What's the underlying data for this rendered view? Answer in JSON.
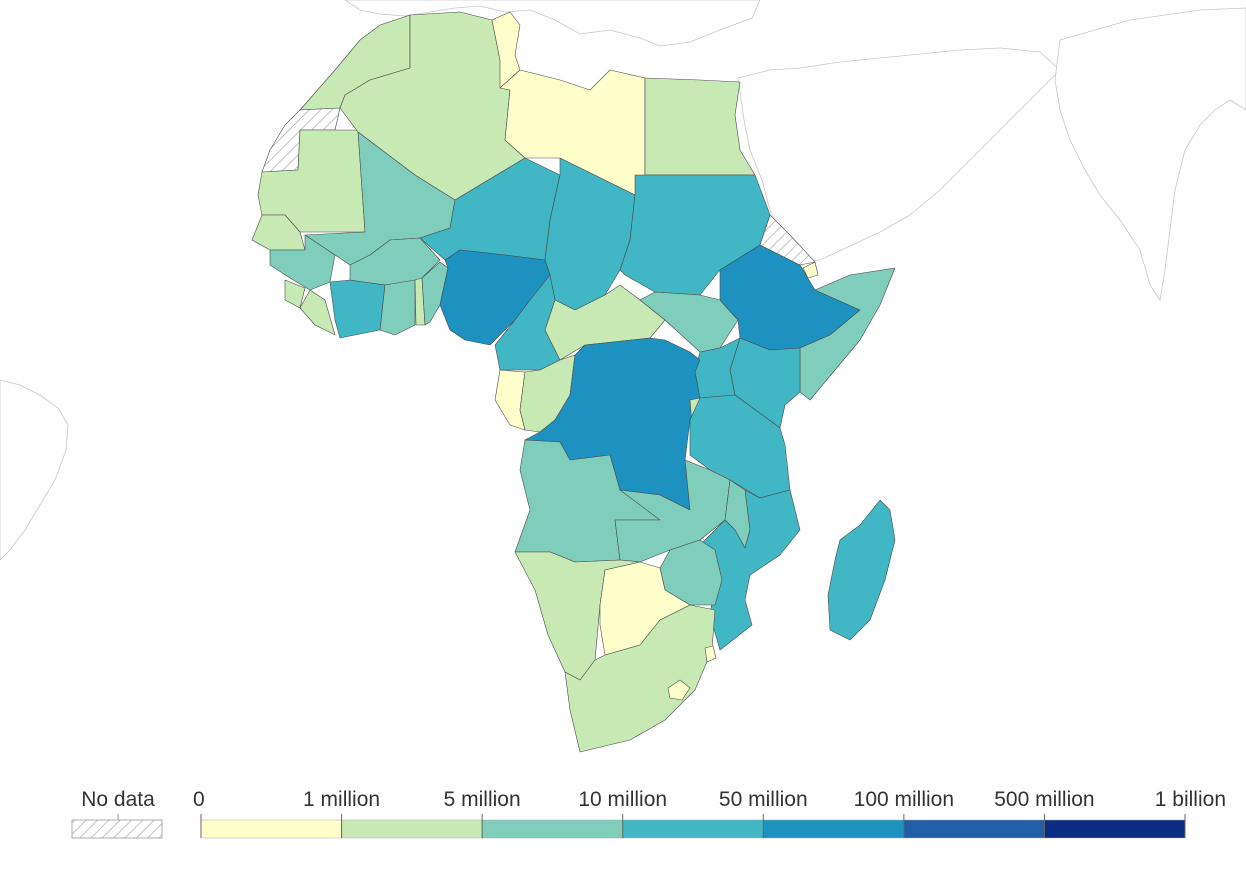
{
  "legend": {
    "no_data_label": "No data",
    "no_data_pattern": "hatched",
    "bins": [
      {
        "label": "0",
        "color": "#ffffcc"
      },
      {
        "label": "1 million",
        "color": "#c7e9b4"
      },
      {
        "label": "5 million",
        "color": "#7fcdbb"
      },
      {
        "label": "10 million",
        "color": "#41b6c4"
      },
      {
        "label": "50 million",
        "color": "#1d91c0"
      },
      {
        "label": "100 million",
        "color": "#225ea8"
      },
      {
        "label": "500 million",
        "color": "#0c2c84"
      },
      {
        "label": "1 billion",
        "color": null
      }
    ]
  },
  "regions": [
    {
      "id": "morocco",
      "bin": 1
    },
    {
      "id": "western-sahara",
      "bin": "no-data"
    },
    {
      "id": "mauritania",
      "bin": 1
    },
    {
      "id": "algeria",
      "bin": 1
    },
    {
      "id": "tunisia",
      "bin": 0
    },
    {
      "id": "libya",
      "bin": 0
    },
    {
      "id": "egypt",
      "bin": 1
    },
    {
      "id": "mali",
      "bin": 2
    },
    {
      "id": "niger",
      "bin": 3
    },
    {
      "id": "chad",
      "bin": 3
    },
    {
      "id": "sudan",
      "bin": 3
    },
    {
      "id": "senegal",
      "bin": 1
    },
    {
      "id": "guinea",
      "bin": 2
    },
    {
      "id": "sierra-leone",
      "bin": 1
    },
    {
      "id": "liberia",
      "bin": 1
    },
    {
      "id": "cote-divoire",
      "bin": 3
    },
    {
      "id": "burkina-faso",
      "bin": 2
    },
    {
      "id": "ghana",
      "bin": 2
    },
    {
      "id": "togo",
      "bin": 1
    },
    {
      "id": "benin",
      "bin": 2
    },
    {
      "id": "nigeria",
      "bin": 4
    },
    {
      "id": "cameroon",
      "bin": 3
    },
    {
      "id": "central-african-republic",
      "bin": 1
    },
    {
      "id": "south-sudan",
      "bin": 2
    },
    {
      "id": "ethiopia",
      "bin": 4
    },
    {
      "id": "eritrea",
      "bin": "no-data"
    },
    {
      "id": "djibouti",
      "bin": 0
    },
    {
      "id": "somalia",
      "bin": 2
    },
    {
      "id": "kenya",
      "bin": 3
    },
    {
      "id": "uganda",
      "bin": 3
    },
    {
      "id": "gabon",
      "bin": 0
    },
    {
      "id": "republic-of-congo",
      "bin": 1
    },
    {
      "id": "dr-congo",
      "bin": 4
    },
    {
      "id": "rwanda-burundi",
      "bin": 1
    },
    {
      "id": "tanzania",
      "bin": 3
    },
    {
      "id": "angola",
      "bin": 2
    },
    {
      "id": "zambia",
      "bin": 2
    },
    {
      "id": "malawi",
      "bin": 2
    },
    {
      "id": "mozambique",
      "bin": 3
    },
    {
      "id": "zimbabwe",
      "bin": 2
    },
    {
      "id": "namibia",
      "bin": 1
    },
    {
      "id": "botswana",
      "bin": 0
    },
    {
      "id": "south-africa",
      "bin": 1
    },
    {
      "id": "lesotho",
      "bin": 0
    },
    {
      "id": "eswatini",
      "bin": 0
    },
    {
      "id": "madagascar",
      "bin": 3
    }
  ]
}
